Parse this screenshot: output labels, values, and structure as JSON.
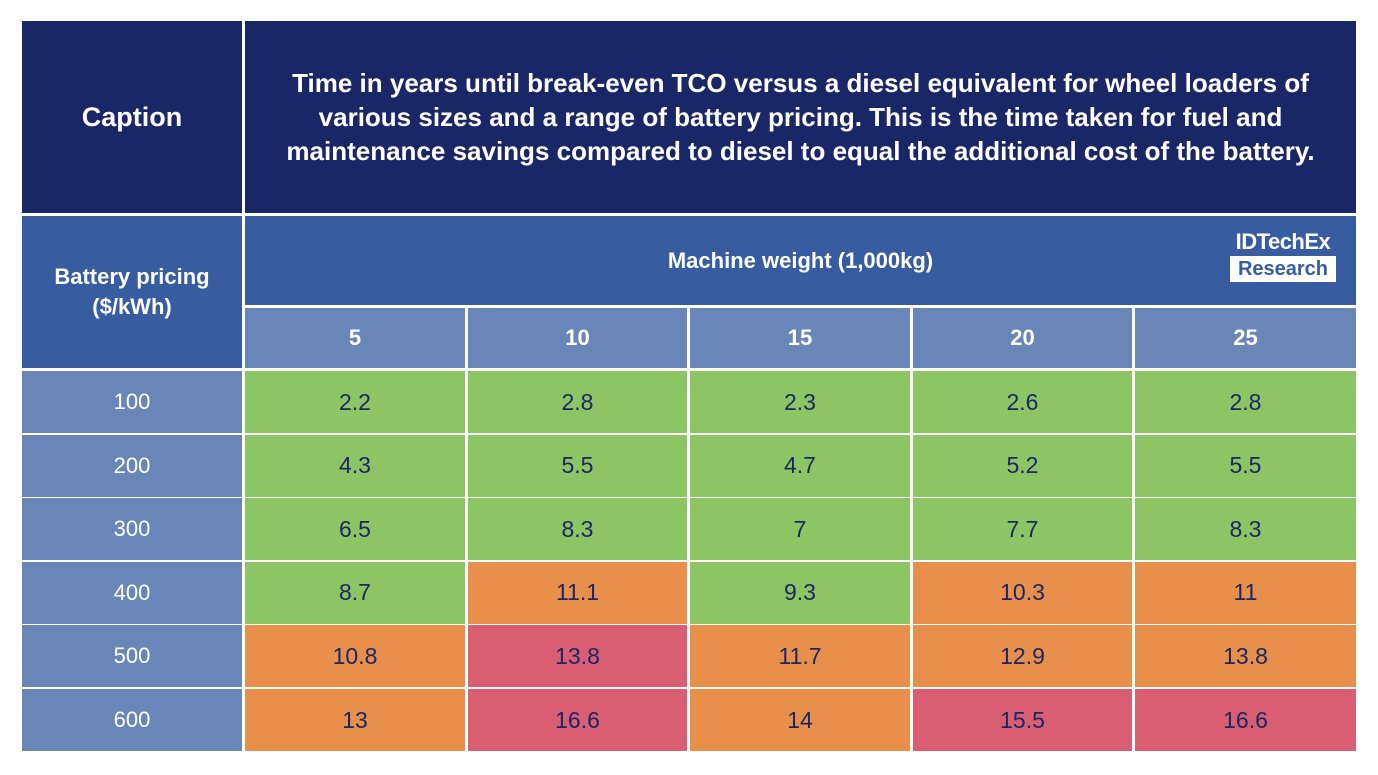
{
  "caption_label": "Caption",
  "caption_text": "Time in years until break-even TCO versus a diesel equivalent for wheel loaders of various sizes and a range of battery pricing. This is the time taken for fuel and maintenance savings compared to diesel to equal the additional cost of the battery.",
  "row_header": "Battery pricing ($/kWh)",
  "column_group_header": "Machine weight (1,000kg)",
  "logo": {
    "top": "IDTechEx",
    "bottom": "Research"
  },
  "columns": [
    "5",
    "10",
    "15",
    "20",
    "25"
  ],
  "rows": [
    {
      "label": "100",
      "values": [
        "2.2",
        "2.8",
        "2.3",
        "2.6",
        "2.8"
      ],
      "colors": [
        "green",
        "green",
        "green",
        "green",
        "green"
      ]
    },
    {
      "label": "200",
      "values": [
        "4.3",
        "5.5",
        "4.7",
        "5.2",
        "5.5"
      ],
      "colors": [
        "green",
        "green",
        "green",
        "green",
        "green"
      ]
    },
    {
      "label": "300",
      "values": [
        "6.5",
        "8.3",
        "7",
        "7.7",
        "8.3"
      ],
      "colors": [
        "green",
        "green",
        "green",
        "green",
        "green"
      ]
    },
    {
      "label": "400",
      "values": [
        "8.7",
        "11.1",
        "9.3",
        "10.3",
        "11"
      ],
      "colors": [
        "green",
        "orange",
        "green",
        "orange",
        "orange"
      ]
    },
    {
      "label": "500",
      "values": [
        "10.8",
        "13.8",
        "11.7",
        "12.9",
        "13.8"
      ],
      "colors": [
        "orange",
        "red",
        "orange",
        "orange",
        "orange"
      ]
    },
    {
      "label": "600",
      "values": [
        "13",
        "16.6",
        "14",
        "15.5",
        "16.6"
      ],
      "colors": [
        "orange",
        "red",
        "orange",
        "red",
        "red"
      ]
    }
  ],
  "palette": {
    "navy": "#1a2766",
    "blue": "#385ca0",
    "light_blue": "#6a86b8",
    "green": "#8ec564",
    "orange": "#e98f4c",
    "red": "#d95e72"
  }
}
